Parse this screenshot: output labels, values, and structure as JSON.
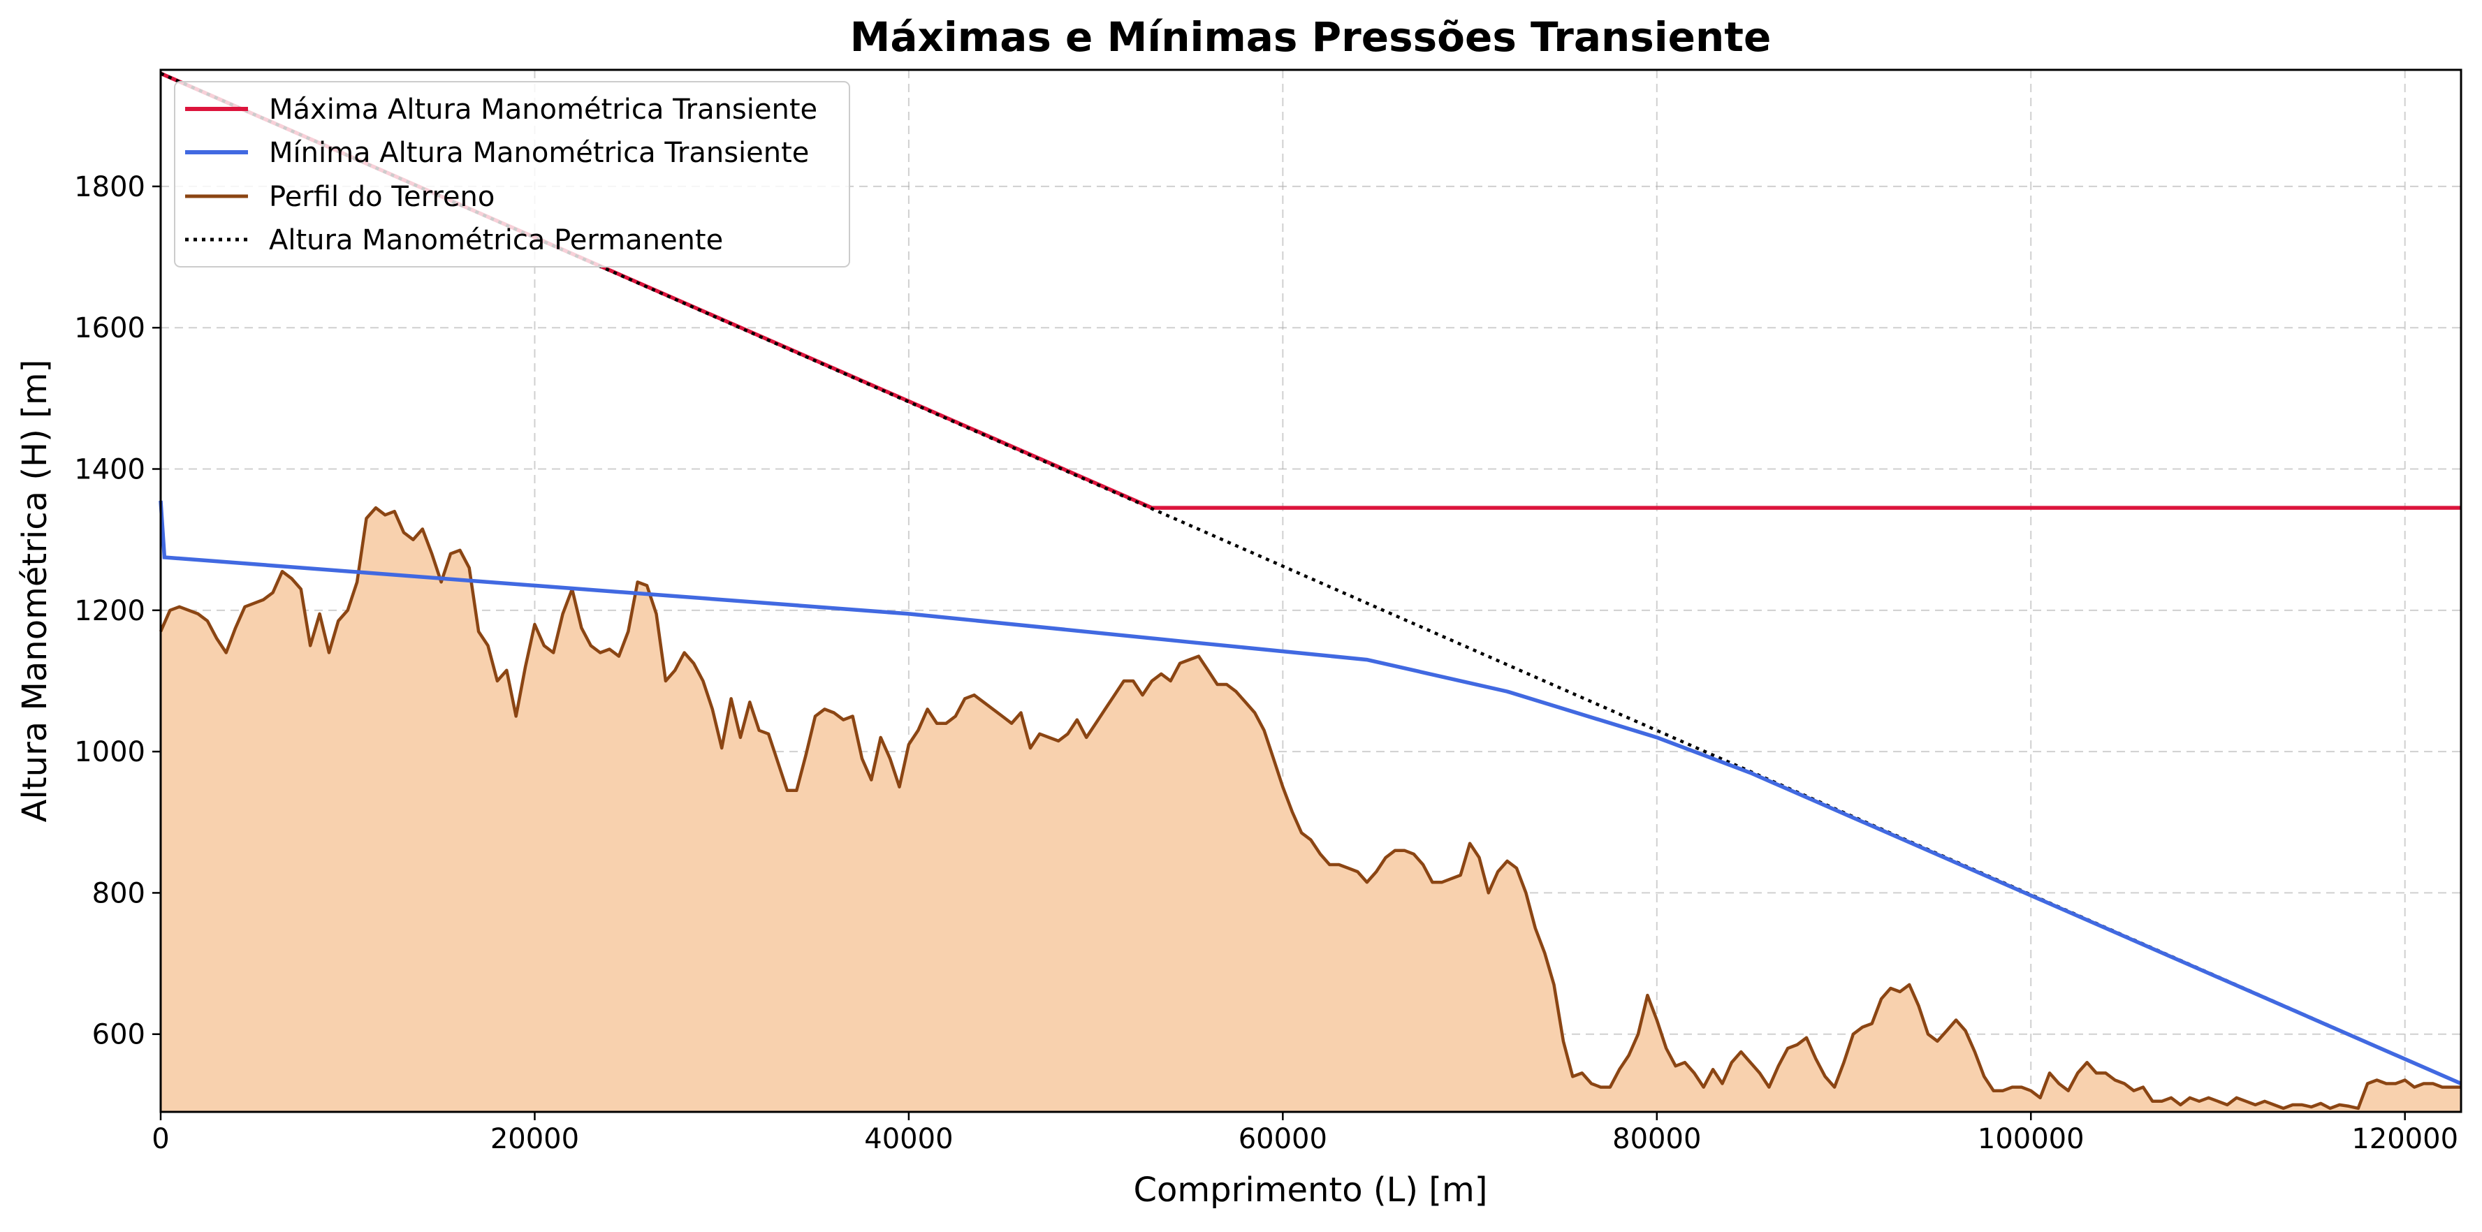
{
  "chart_data": {
    "type": "line",
    "title": "Máximas e Mínimas Pressões Transiente",
    "xlabel": "Comprimento (L) [m]",
    "ylabel": "Altura Manométrica (H) [m]",
    "xlim": [
      0,
      123000
    ],
    "ylim": [
      490,
      1965
    ],
    "x_ticks": [
      0,
      20000,
      40000,
      60000,
      80000,
      100000,
      120000
    ],
    "y_ticks": [
      600,
      800,
      1000,
      1200,
      1400,
      1600,
      1800
    ],
    "grid": true,
    "legend_position": "upper-left",
    "colors": {
      "max": "#dc143c",
      "min": "#4169e1",
      "terrain": "#8b4513",
      "terrain_fill": "#f8d1ae",
      "permanent": "#000000"
    },
    "series": [
      {
        "name": "Máxima Altura Manométrica Transiente",
        "points": [
          [
            0,
            1960
          ],
          [
            53000,
            1345
          ],
          [
            123000,
            1345
          ]
        ]
      },
      {
        "name": "Mínima Altura Manométrica Transiente",
        "points": [
          [
            0,
            1355
          ],
          [
            200,
            1275
          ],
          [
            20000,
            1235
          ],
          [
            40000,
            1195
          ],
          [
            55000,
            1155
          ],
          [
            64500,
            1130
          ],
          [
            72000,
            1085
          ],
          [
            80000,
            1020
          ],
          [
            85000,
            970
          ],
          [
            123000,
            530
          ]
        ]
      },
      {
        "name": "Perfil do Terreno",
        "points": [
          [
            0,
            1170
          ],
          [
            500,
            1200
          ],
          [
            1000,
            1205
          ],
          [
            2000,
            1195
          ],
          [
            2500,
            1185
          ],
          [
            3000,
            1160
          ],
          [
            3500,
            1140
          ],
          [
            4000,
            1175
          ],
          [
            4500,
            1205
          ],
          [
            5000,
            1210
          ],
          [
            5500,
            1215
          ],
          [
            6000,
            1225
          ],
          [
            6500,
            1255
          ],
          [
            7000,
            1245
          ],
          [
            7500,
            1230
          ],
          [
            8000,
            1150
          ],
          [
            8500,
            1195
          ],
          [
            9000,
            1140
          ],
          [
            9500,
            1185
          ],
          [
            10000,
            1200
          ],
          [
            10500,
            1240
          ],
          [
            11000,
            1330
          ],
          [
            11500,
            1345
          ],
          [
            12000,
            1335
          ],
          [
            12500,
            1340
          ],
          [
            13000,
            1310
          ],
          [
            13500,
            1300
          ],
          [
            14000,
            1315
          ],
          [
            14500,
            1280
          ],
          [
            15000,
            1240
          ],
          [
            15500,
            1280
          ],
          [
            16000,
            1285
          ],
          [
            16500,
            1260
          ],
          [
            17000,
            1170
          ],
          [
            17500,
            1150
          ],
          [
            18000,
            1100
          ],
          [
            18500,
            1115
          ],
          [
            19000,
            1050
          ],
          [
            19500,
            1120
          ],
          [
            20000,
            1180
          ],
          [
            20500,
            1150
          ],
          [
            21000,
            1140
          ],
          [
            21500,
            1195
          ],
          [
            22000,
            1230
          ],
          [
            22500,
            1175
          ],
          [
            23000,
            1150
          ],
          [
            23500,
            1140
          ],
          [
            24000,
            1145
          ],
          [
            24500,
            1135
          ],
          [
            25000,
            1170
          ],
          [
            25500,
            1240
          ],
          [
            26000,
            1235
          ],
          [
            26500,
            1195
          ],
          [
            27000,
            1100
          ],
          [
            27500,
            1115
          ],
          [
            28000,
            1140
          ],
          [
            28500,
            1125
          ],
          [
            29000,
            1100
          ],
          [
            29500,
            1060
          ],
          [
            30000,
            1005
          ],
          [
            30500,
            1075
          ],
          [
            31000,
            1020
          ],
          [
            31500,
            1070
          ],
          [
            32000,
            1030
          ],
          [
            32500,
            1025
          ],
          [
            33000,
            985
          ],
          [
            33500,
            945
          ],
          [
            34000,
            945
          ],
          [
            34500,
            995
          ],
          [
            35000,
            1050
          ],
          [
            35500,
            1060
          ],
          [
            36000,
            1055
          ],
          [
            36500,
            1045
          ],
          [
            37000,
            1050
          ],
          [
            37500,
            990
          ],
          [
            38000,
            960
          ],
          [
            38500,
            1020
          ],
          [
            39000,
            990
          ],
          [
            39500,
            950
          ],
          [
            40000,
            1010
          ],
          [
            40500,
            1030
          ],
          [
            41000,
            1060
          ],
          [
            41500,
            1040
          ],
          [
            42000,
            1040
          ],
          [
            42500,
            1050
          ],
          [
            43000,
            1075
          ],
          [
            43500,
            1080
          ],
          [
            44000,
            1070
          ],
          [
            44500,
            1060
          ],
          [
            45000,
            1050
          ],
          [
            45500,
            1040
          ],
          [
            46000,
            1055
          ],
          [
            46500,
            1005
          ],
          [
            47000,
            1025
          ],
          [
            47500,
            1020
          ],
          [
            48000,
            1015
          ],
          [
            48500,
            1025
          ],
          [
            49000,
            1045
          ],
          [
            49500,
            1020
          ],
          [
            50000,
            1040
          ],
          [
            50500,
            1060
          ],
          [
            51000,
            1080
          ],
          [
            51500,
            1100
          ],
          [
            52000,
            1100
          ],
          [
            52500,
            1080
          ],
          [
            53000,
            1100
          ],
          [
            53500,
            1110
          ],
          [
            54000,
            1100
          ],
          [
            54500,
            1125
          ],
          [
            55000,
            1130
          ],
          [
            55500,
            1135
          ],
          [
            56000,
            1115
          ],
          [
            56500,
            1095
          ],
          [
            57000,
            1095
          ],
          [
            57500,
            1085
          ],
          [
            58000,
            1070
          ],
          [
            58500,
            1055
          ],
          [
            59000,
            1030
          ],
          [
            59500,
            990
          ],
          [
            60000,
            950
          ],
          [
            60500,
            915
          ],
          [
            61000,
            885
          ],
          [
            61500,
            875
          ],
          [
            62000,
            855
          ],
          [
            62500,
            840
          ],
          [
            63000,
            840
          ],
          [
            63500,
            835
          ],
          [
            64000,
            830
          ],
          [
            64500,
            815
          ],
          [
            65000,
            830
          ],
          [
            65500,
            850
          ],
          [
            66000,
            860
          ],
          [
            66500,
            860
          ],
          [
            67000,
            855
          ],
          [
            67500,
            840
          ],
          [
            68000,
            815
          ],
          [
            68500,
            815
          ],
          [
            69000,
            820
          ],
          [
            69500,
            825
          ],
          [
            70000,
            870
          ],
          [
            70500,
            850
          ],
          [
            71000,
            800
          ],
          [
            71500,
            830
          ],
          [
            72000,
            845
          ],
          [
            72500,
            835
          ],
          [
            73000,
            800
          ],
          [
            73500,
            750
          ],
          [
            74000,
            715
          ],
          [
            74500,
            670
          ],
          [
            75000,
            590
          ],
          [
            75500,
            540
          ],
          [
            76000,
            545
          ],
          [
            76500,
            530
          ],
          [
            77000,
            525
          ],
          [
            77500,
            525
          ],
          [
            78000,
            550
          ],
          [
            78500,
            570
          ],
          [
            79000,
            600
          ],
          [
            79500,
            655
          ],
          [
            80000,
            620
          ],
          [
            80500,
            580
          ],
          [
            81000,
            555
          ],
          [
            81500,
            560
          ],
          [
            82000,
            545
          ],
          [
            82500,
            525
          ],
          [
            83000,
            550
          ],
          [
            83500,
            530
          ],
          [
            84000,
            560
          ],
          [
            84500,
            575
          ],
          [
            85000,
            560
          ],
          [
            85500,
            545
          ],
          [
            86000,
            525
          ],
          [
            86500,
            555
          ],
          [
            87000,
            580
          ],
          [
            87500,
            585
          ],
          [
            88000,
            595
          ],
          [
            88500,
            565
          ],
          [
            89000,
            540
          ],
          [
            89500,
            525
          ],
          [
            90000,
            560
          ],
          [
            90500,
            600
          ],
          [
            91000,
            610
          ],
          [
            91500,
            615
          ],
          [
            92000,
            650
          ],
          [
            92500,
            665
          ],
          [
            93000,
            660
          ],
          [
            93500,
            670
          ],
          [
            94000,
            640
          ],
          [
            94500,
            600
          ],
          [
            95000,
            590
          ],
          [
            95500,
            605
          ],
          [
            96000,
            620
          ],
          [
            96500,
            605
          ],
          [
            97000,
            575
          ],
          [
            97500,
            540
          ],
          [
            98000,
            520
          ],
          [
            98500,
            520
          ],
          [
            99000,
            525
          ],
          [
            99500,
            525
          ],
          [
            100000,
            520
          ],
          [
            100500,
            510
          ],
          [
            101000,
            545
          ],
          [
            101500,
            530
          ],
          [
            102000,
            520
          ],
          [
            102500,
            545
          ],
          [
            103000,
            560
          ],
          [
            103500,
            545
          ],
          [
            104000,
            545
          ],
          [
            104500,
            535
          ],
          [
            105000,
            530
          ],
          [
            105500,
            520
          ],
          [
            106000,
            525
          ],
          [
            106500,
            505
          ],
          [
            107000,
            505
          ],
          [
            107500,
            510
          ],
          [
            108000,
            500
          ],
          [
            108500,
            510
          ],
          [
            109000,
            505
          ],
          [
            109500,
            510
          ],
          [
            110000,
            505
          ],
          [
            110500,
            500
          ],
          [
            111000,
            510
          ],
          [
            111500,
            505
          ],
          [
            112000,
            500
          ],
          [
            112500,
            505
          ],
          [
            113000,
            500
          ],
          [
            113500,
            495
          ],
          [
            114000,
            500
          ],
          [
            114500,
            500
          ],
          [
            115000,
            497
          ],
          [
            115500,
            502
          ],
          [
            116000,
            495
          ],
          [
            116500,
            500
          ],
          [
            117000,
            498
          ],
          [
            117500,
            495
          ],
          [
            118000,
            530
          ],
          [
            118500,
            535
          ],
          [
            119000,
            530
          ],
          [
            119500,
            530
          ],
          [
            120000,
            535
          ],
          [
            120500,
            525
          ],
          [
            121000,
            530
          ],
          [
            121500,
            530
          ],
          [
            122000,
            525
          ],
          [
            123000,
            525
          ]
        ]
      },
      {
        "name": "Altura Manométrica Permanente",
        "points": [
          [
            0,
            1960
          ],
          [
            123000,
            530
          ]
        ]
      }
    ]
  }
}
